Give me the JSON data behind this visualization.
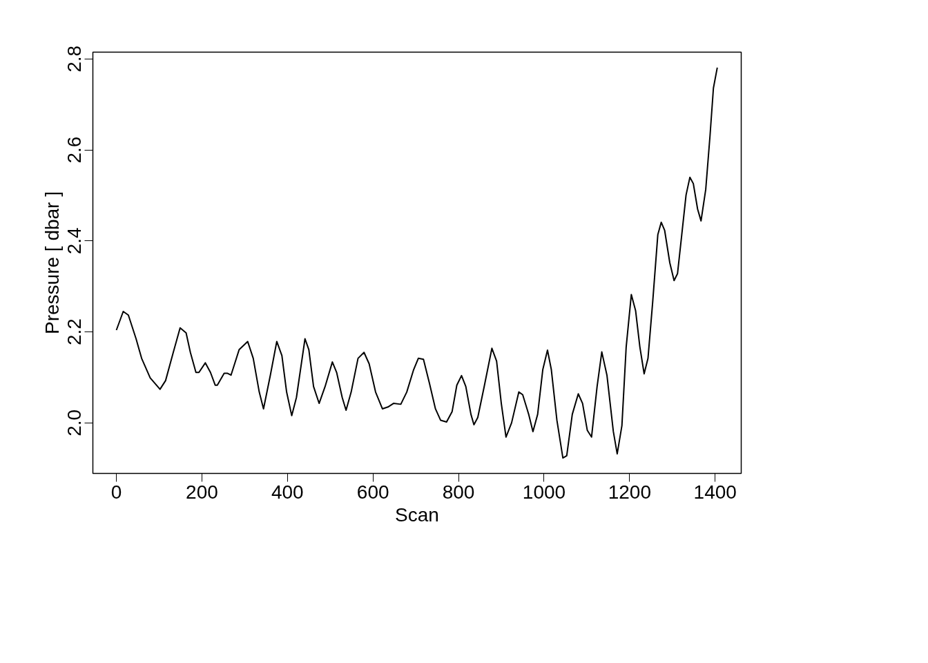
{
  "chart_data": {
    "type": "line",
    "xlabel": "Scan",
    "ylabel": "Pressure [ dbar ]",
    "xlim": [
      -55,
      1461
    ],
    "ylim": [
      1.889,
      2.815
    ],
    "xticks": [
      0,
      200,
      400,
      600,
      800,
      1000,
      1200,
      1400
    ],
    "yticks": [
      {
        "value": 2.0,
        "label": "2.0"
      },
      {
        "value": 2.2,
        "label": "2.2"
      },
      {
        "value": 2.4,
        "label": "2.4"
      },
      {
        "value": 2.6,
        "label": "2.6"
      },
      {
        "value": 2.8,
        "label": "2.8"
      }
    ],
    "grid": false,
    "line_style": "solid",
    "series": [
      {
        "color": "#000000",
        "x": [
          0,
          16,
          28,
          46,
          59,
          79,
          102,
          115,
          133,
          149,
          163,
          173,
          186,
          193,
          208,
          220,
          231,
          236,
          252,
          260,
          268,
          287,
          307,
          320,
          334,
          344,
          360,
          375,
          387,
          398,
          410,
          421,
          441,
          450,
          461,
          474,
          488,
          505,
          515,
          528,
          537,
          549,
          565,
          579,
          591,
          606,
          622,
          635,
          648,
          665,
          679,
          695,
          706,
          718,
          732,
          746,
          758,
          772,
          785,
          796,
          807,
          817,
          829,
          836,
          845,
          860,
          878,
          889,
          900,
          911,
          924,
          941,
          950,
          964,
          974,
          985,
          997,
          1008,
          1017,
          1030,
          1044,
          1053,
          1066,
          1080,
          1090,
          1101,
          1111,
          1124,
          1135,
          1147,
          1162,
          1171,
          1182,
          1192,
          1204,
          1214,
          1224,
          1234,
          1243,
          1254,
          1266,
          1274,
          1282,
          1294,
          1304,
          1312,
          1322,
          1332,
          1341,
          1349,
          1359,
          1367,
          1378,
          1388,
          1396,
          1405
        ],
        "values": [
          2.204,
          2.245,
          2.237,
          2.185,
          2.142,
          2.099,
          2.074,
          2.093,
          2.155,
          2.209,
          2.198,
          2.155,
          2.111,
          2.111,
          2.132,
          2.111,
          2.083,
          2.083,
          2.109,
          2.109,
          2.105,
          2.161,
          2.179,
          2.142,
          2.068,
          2.031,
          2.105,
          2.179,
          2.148,
          2.068,
          2.016,
          2.056,
          2.185,
          2.161,
          2.08,
          2.043,
          2.08,
          2.134,
          2.111,
          2.056,
          2.028,
          2.068,
          2.142,
          2.155,
          2.13,
          2.068,
          2.031,
          2.035,
          2.043,
          2.041,
          2.068,
          2.117,
          2.142,
          2.14,
          2.087,
          2.031,
          2.006,
          2.002,
          2.025,
          2.083,
          2.104,
          2.08,
          2.019,
          1.996,
          2.012,
          2.08,
          2.164,
          2.136,
          2.043,
          1.969,
          2.0,
          2.068,
          2.062,
          2.019,
          1.981,
          2.019,
          2.117,
          2.16,
          2.117,
          2.006,
          1.923,
          1.928,
          2.019,
          2.064,
          2.043,
          1.984,
          1.969,
          2.08,
          2.156,
          2.105,
          1.981,
          1.932,
          1.994,
          2.167,
          2.282,
          2.247,
          2.167,
          2.108,
          2.142,
          2.266,
          2.414,
          2.441,
          2.423,
          2.352,
          2.313,
          2.328,
          2.414,
          2.501,
          2.54,
          2.526,
          2.47,
          2.444,
          2.513,
          2.631,
          2.736,
          2.781
        ]
      }
    ]
  }
}
